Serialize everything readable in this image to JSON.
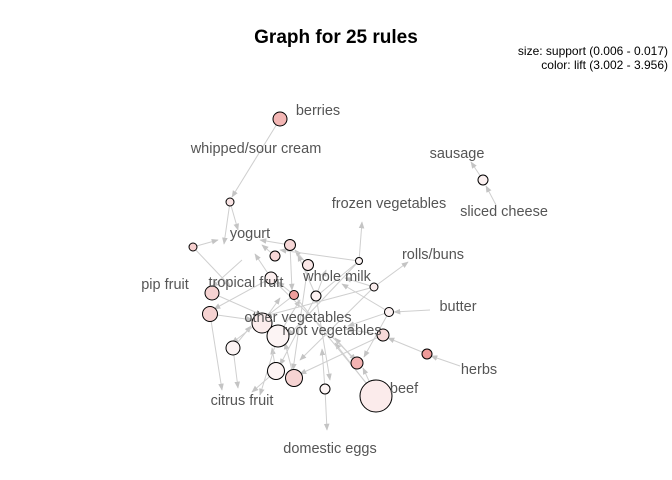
{
  "title": "Graph for 25 rules",
  "legend": {
    "size": "size: support (0.006 - 0.017)",
    "color": "color: lift (3.002 - 3.956)"
  },
  "chart_data": {
    "type": "network",
    "items": [
      "berries",
      "whipped/sour cream",
      "sausage",
      "sliced cheese",
      "frozen vegetables",
      "yogurt",
      "rolls/buns",
      "pip fruit",
      "tropical fruit",
      "whole milk",
      "butter",
      "other vegetables",
      "root vegetables",
      "herbs",
      "beef",
      "citrus fruit",
      "domestic eggs"
    ],
    "rule_count": 25,
    "size_measure": "support",
    "size_range": [
      0.006,
      0.017
    ],
    "color_measure": "lift",
    "color_range": [
      3.002,
      3.956
    ]
  }
}
